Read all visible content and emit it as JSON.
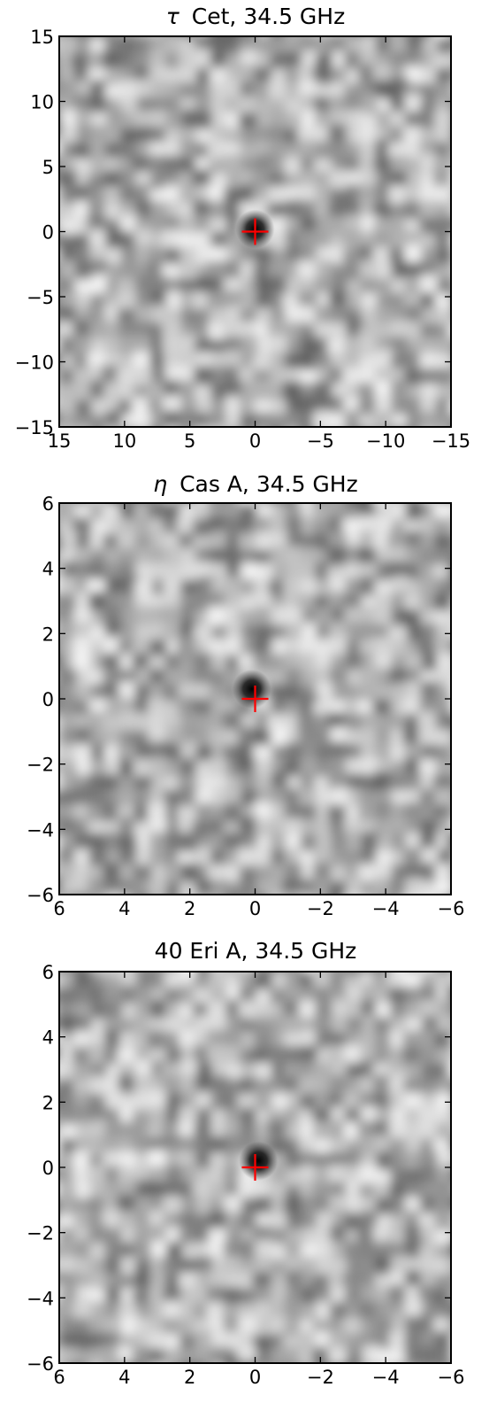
{
  "chart_data": [
    {
      "type": "heatmap",
      "title_prefix": "τ",
      "title": "Cet, 34.5 GHz",
      "xlabel": "",
      "ylabel": "",
      "xlim": [
        15,
        -15
      ],
      "ylim": [
        -15,
        15
      ],
      "xticks": [
        15,
        10,
        5,
        0,
        -5,
        -10,
        -15
      ],
      "yticks": [
        15,
        10,
        5,
        0,
        -5,
        -10,
        -15
      ],
      "xtick_labels": [
        "15",
        "10",
        "5",
        "0",
        "−5",
        "−10",
        "−15"
      ],
      "ytick_labels": [
        "15",
        "10",
        "5",
        "0",
        "−5",
        "−10",
        "−15"
      ],
      "colormap": "gray_r",
      "grid": false,
      "marker": {
        "x": 0,
        "y": 0,
        "symbol": "plus",
        "color": "#ff0000"
      },
      "peak": {
        "x": 0,
        "y": 0.2
      }
    },
    {
      "type": "heatmap",
      "title_prefix": "η",
      "title": "Cas A, 34.5 GHz",
      "xlabel": "",
      "ylabel": "",
      "xlim": [
        6,
        -6
      ],
      "ylim": [
        -6,
        6
      ],
      "xticks": [
        6,
        4,
        2,
        0,
        -2,
        -4,
        -6
      ],
      "yticks": [
        6,
        4,
        2,
        0,
        -2,
        -4,
        -6
      ],
      "xtick_labels": [
        "6",
        "4",
        "2",
        "0",
        "−2",
        "−4",
        "−6"
      ],
      "ytick_labels": [
        "6",
        "4",
        "2",
        "0",
        "−2",
        "−4",
        "−6"
      ],
      "colormap": "gray_r",
      "grid": false,
      "marker": {
        "x": 0,
        "y": 0,
        "symbol": "plus",
        "color": "#ff0000"
      },
      "peak": {
        "x": 0.1,
        "y": 0.3
      }
    },
    {
      "type": "heatmap",
      "title_prefix": "",
      "title": "40 Eri A, 34.5 GHz",
      "xlabel": "",
      "ylabel": "",
      "xlim": [
        6,
        -6
      ],
      "ylim": [
        -6,
        6
      ],
      "xticks": [
        6,
        4,
        2,
        0,
        -2,
        -4,
        -6
      ],
      "yticks": [
        6,
        4,
        2,
        0,
        -2,
        -4,
        -6
      ],
      "xtick_labels": [
        "6",
        "4",
        "2",
        "0",
        "−2",
        "−4",
        "−6"
      ],
      "ytick_labels": [
        "6",
        "4",
        "2",
        "0",
        "−2",
        "−4",
        "−6"
      ],
      "colormap": "gray_r",
      "grid": false,
      "marker": {
        "x": 0,
        "y": 0,
        "symbol": "plus",
        "color": "#ff0000"
      },
      "peak": {
        "x": -0.1,
        "y": 0.2
      }
    }
  ]
}
